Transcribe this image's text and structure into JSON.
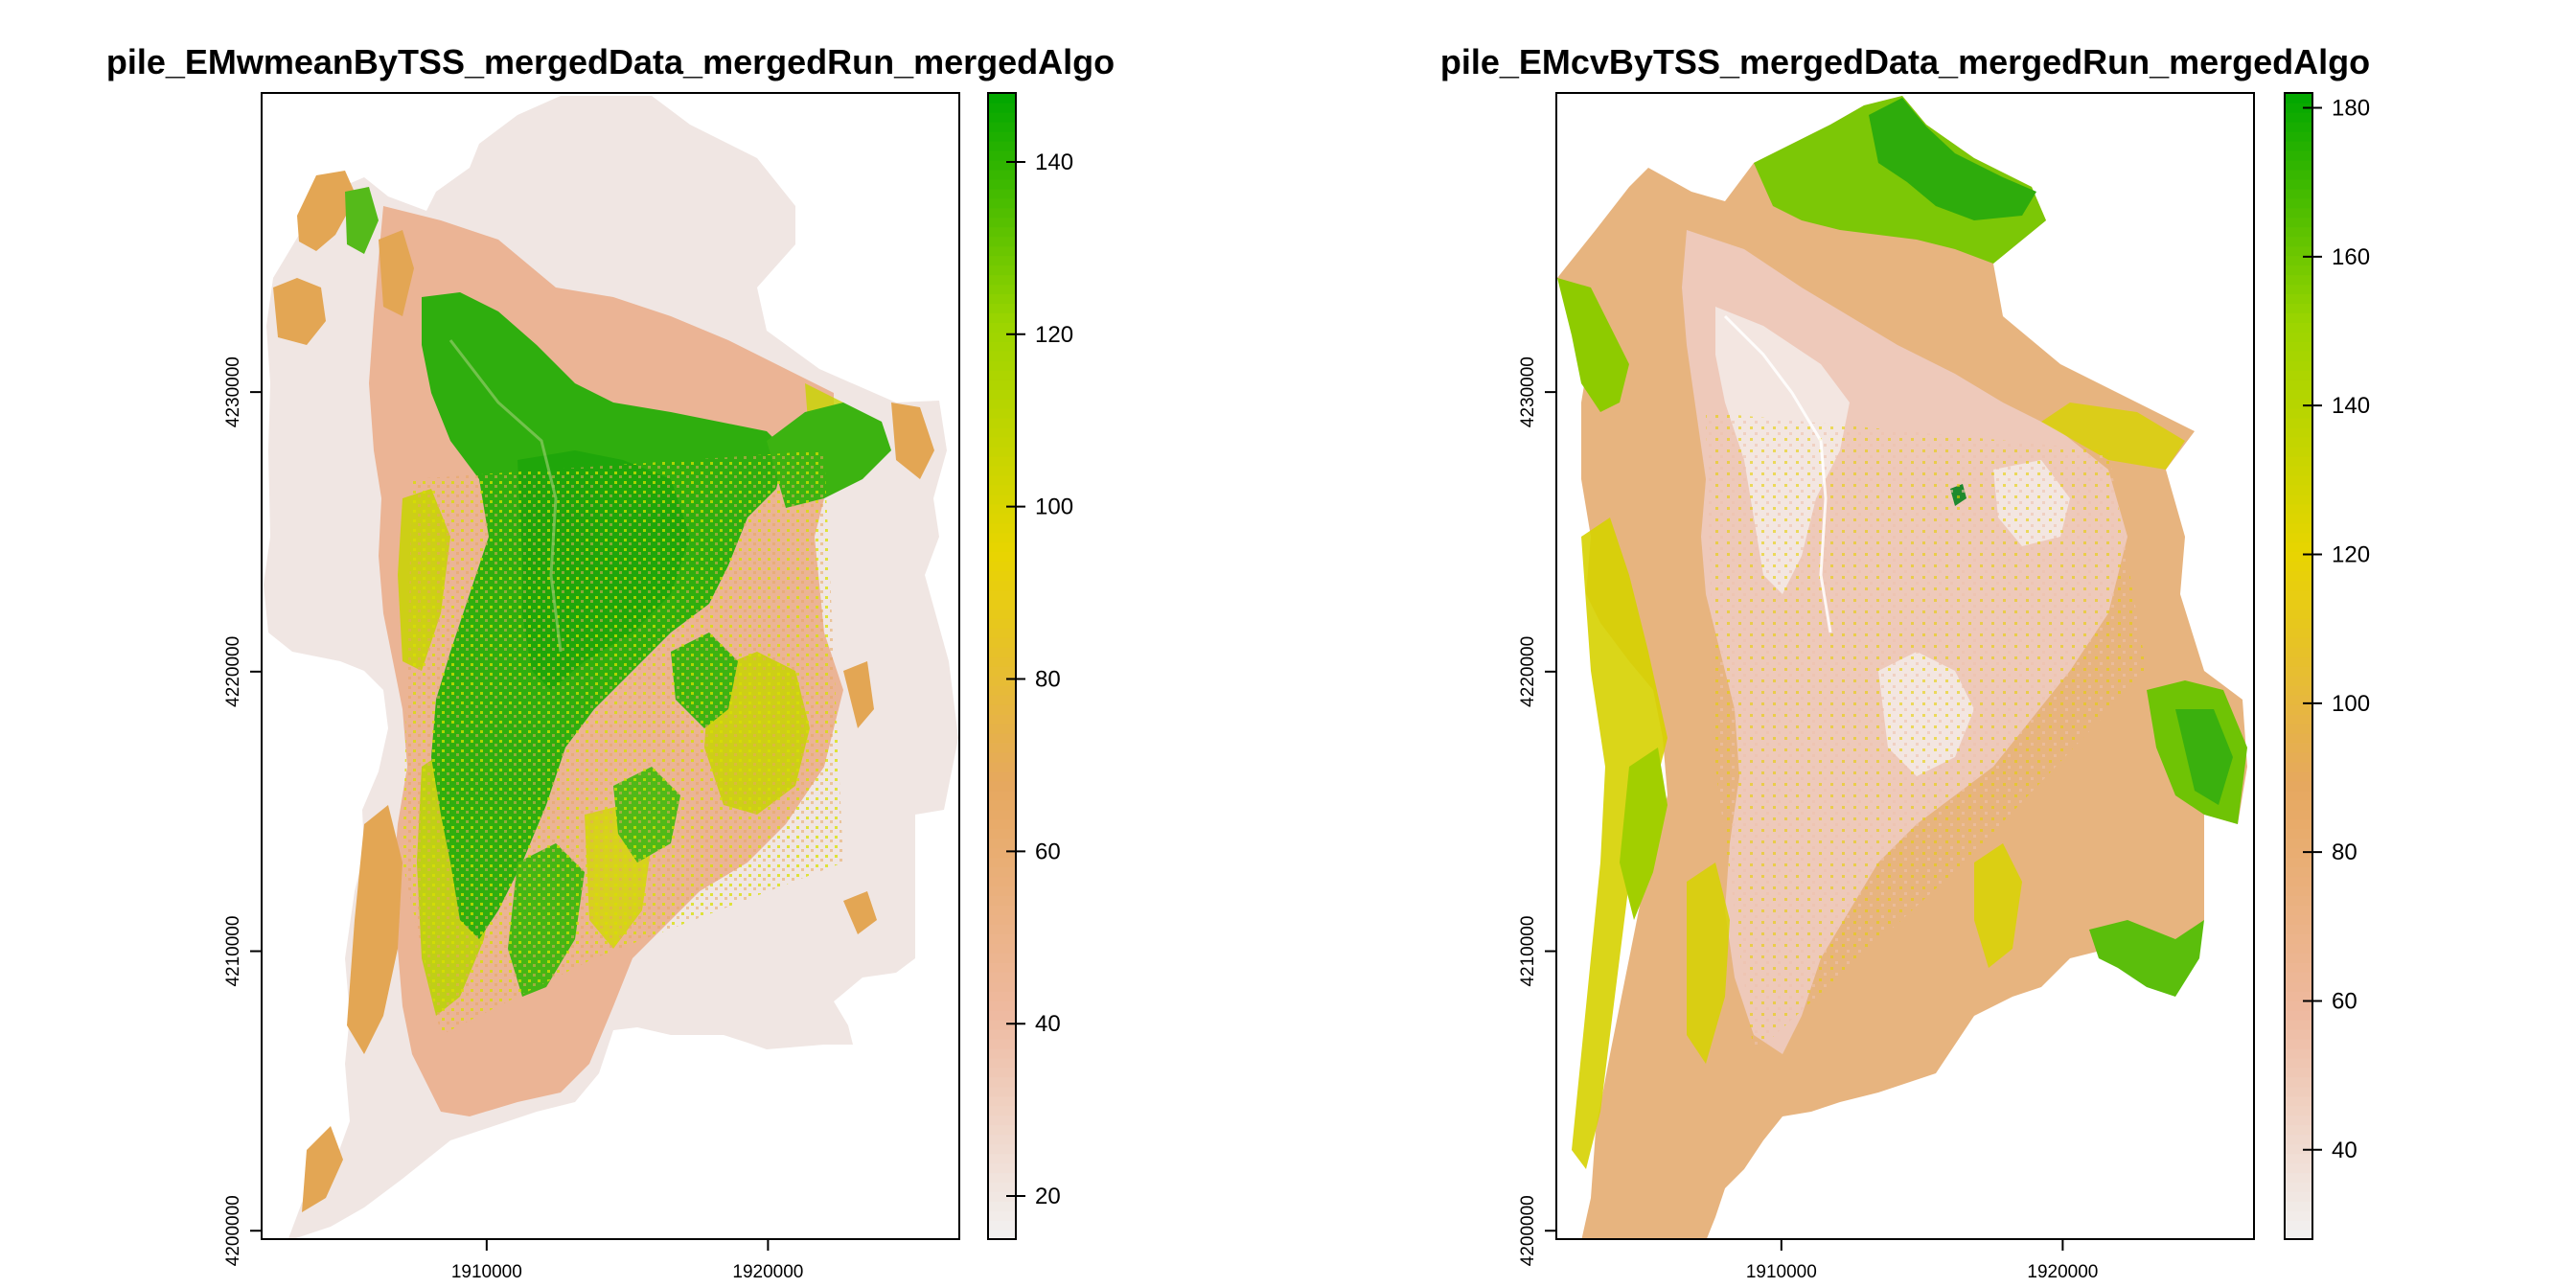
{
  "chart_data": [
    {
      "type": "heatmap",
      "title": "pile_EMwmeanByTSS_mergedData_mergedRun_mergedAlgo",
      "xlabel": "",
      "ylabel": "",
      "x_ticks": [
        "1910000",
        "1920000"
      ],
      "y_ticks": [
        "4200000",
        "4210000",
        "4220000",
        "4230000"
      ],
      "xlim": [
        1902000,
        1926800
      ],
      "ylim": [
        4199700,
        4240700
      ],
      "legend": {
        "position": "right",
        "range": [
          15,
          148
        ],
        "ticks": [
          20,
          40,
          60,
          80,
          100,
          120,
          140
        ],
        "colormap": "terrain"
      },
      "grid": false
    },
    {
      "type": "heatmap",
      "title": "pile_EMcvByTSS_mergedData_mergedRun_mergedAlgo",
      "xlabel": "",
      "ylabel": "",
      "x_ticks": [
        "1910000",
        "1920000"
      ],
      "y_ticks": [
        "4200000",
        "4210000",
        "4220000",
        "4230000"
      ],
      "xlim": [
        1902000,
        1926800
      ],
      "ylim": [
        4199700,
        4240700
      ],
      "legend": {
        "position": "right",
        "range": [
          28,
          182
        ],
        "ticks": [
          40,
          60,
          80,
          100,
          120,
          140,
          160,
          180
        ],
        "colormap": "terrain"
      },
      "grid": false
    }
  ],
  "colors": {
    "terrain_stops": [
      "#F2F2F2",
      "#EEB99F",
      "#E6A85E",
      "#E8D500",
      "#9BD500",
      "#00A600"
    ],
    "frame": "#000000"
  }
}
